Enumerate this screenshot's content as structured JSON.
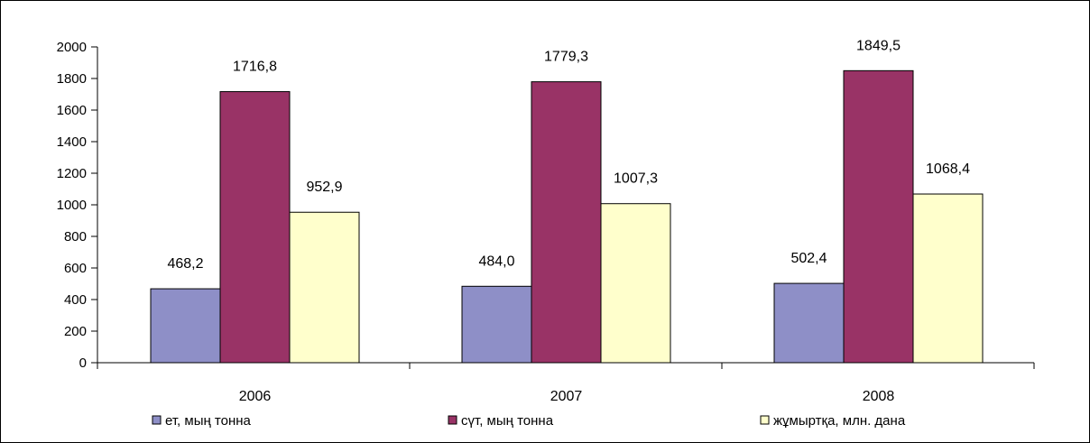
{
  "chart_data": {
    "type": "bar",
    "categories": [
      "2006",
      "2007",
      "2008"
    ],
    "series": [
      {
        "name": "ет, мың тонна",
        "color": "#8e8fc7",
        "values": [
          468.2,
          484.0,
          502.4
        ],
        "labels": [
          "468,2",
          "484,0",
          "502,4"
        ]
      },
      {
        "name": "сүт, мың тонна",
        "color": "#993366",
        "values": [
          1716.8,
          1779.3,
          1849.5
        ],
        "labels": [
          "1716,8",
          "1779,3",
          "1849,5"
        ]
      },
      {
        "name": "жұмыртқа, млн. дана",
        "color": "#ffffcc",
        "values": [
          952.9,
          1007.3,
          1068.4
        ],
        "labels": [
          "952,9",
          "1007,3",
          "1068,4"
        ]
      }
    ],
    "ylim": [
      0,
      2000
    ],
    "yticks": [
      0,
      200,
      400,
      600,
      800,
      1000,
      1200,
      1400,
      1600,
      1800,
      2000
    ],
    "grid": false,
    "legend_position": "bottom"
  }
}
